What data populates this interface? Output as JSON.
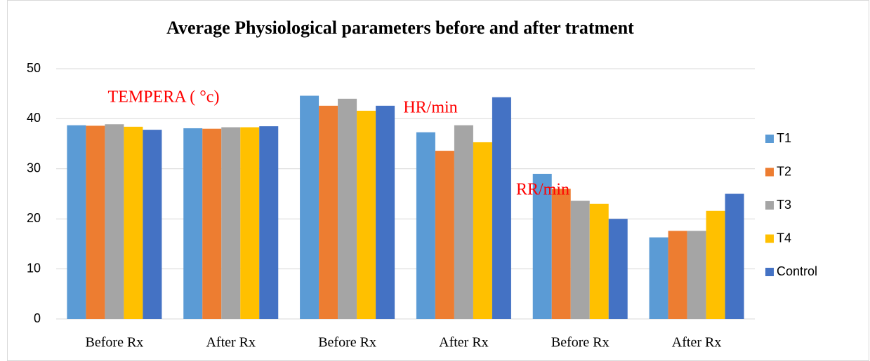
{
  "chart_data": {
    "type": "bar",
    "title": "Average Physiological parameters before and after tratment",
    "categories": [
      "Before Rx",
      "After Rx",
      "Before Rx",
      "After Rx",
      "Before Rx",
      "After Rx"
    ],
    "series": [
      {
        "name": "T1",
        "color": "#5b9bd5",
        "values": [
          38.7,
          38.1,
          44.6,
          37.3,
          29.0,
          16.3
        ]
      },
      {
        "name": "T2",
        "color": "#ed7d31",
        "values": [
          38.6,
          38.0,
          42.6,
          33.6,
          26.0,
          17.6
        ]
      },
      {
        "name": "T3",
        "color": "#a5a5a5",
        "values": [
          38.9,
          38.3,
          44.0,
          38.7,
          23.6,
          17.6
        ]
      },
      {
        "name": "T4",
        "color": "#ffc000",
        "values": [
          38.4,
          38.3,
          41.6,
          35.3,
          23.0,
          21.6
        ]
      },
      {
        "name": "Control",
        "color": "#4472c4",
        "values": [
          37.8,
          38.5,
          42.6,
          44.3,
          20.0,
          25.0
        ]
      }
    ],
    "annotations": [
      "TEMPERA ( °c)",
      "HR/min",
      "RR/min"
    ],
    "annotation_color": "#ff0000",
    "ylim": [
      0,
      50
    ],
    "yticks": [
      0,
      10,
      20,
      30,
      40,
      50
    ],
    "grid": true,
    "legend": "right"
  }
}
